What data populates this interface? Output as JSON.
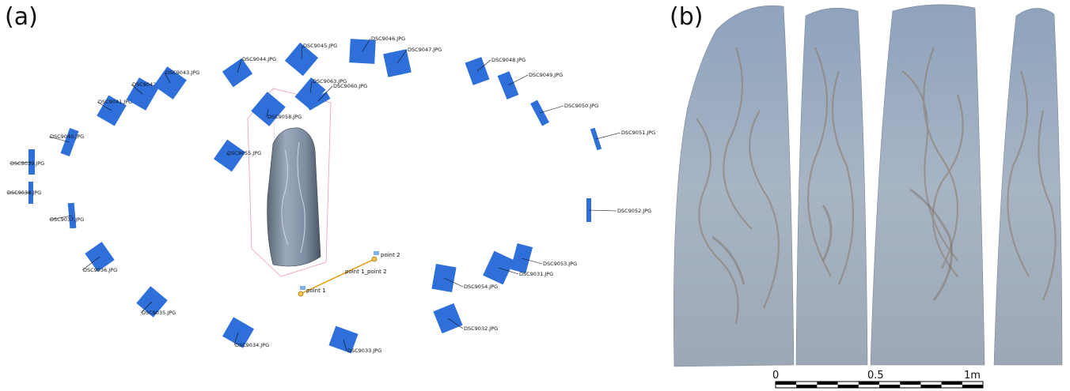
{
  "panel_a": {
    "letter": "(a)",
    "cameras": [
      {
        "label": "DSC9044.JPG"
      },
      {
        "label": "DSC9045.JPG"
      },
      {
        "label": "DSC9046.JPG"
      },
      {
        "label": "DSC9047.JPG"
      },
      {
        "label": "DSC9048.JPG"
      },
      {
        "label": "DSC9049.JPG"
      },
      {
        "label": "DSC9050.JPG"
      },
      {
        "label": "DSC9051.JPG"
      },
      {
        "label": "DSC9052.JPG"
      },
      {
        "label": "DSC9053.JPG"
      },
      {
        "label": "DSC9031.JPG"
      },
      {
        "label": "DSC9054.JPG"
      },
      {
        "label": "DSC9032.JPG"
      },
      {
        "label": "DSC9033.JPG"
      },
      {
        "label": "DSC9034.JPG"
      },
      {
        "label": "DSC9035.JPG"
      },
      {
        "label": "DSC9036.JPG"
      },
      {
        "label": "DSC9037.JPG"
      },
      {
        "label": "DSC9038.JPG"
      },
      {
        "label": "DSC9039.JPG"
      },
      {
        "label": "DSC9040.JPG"
      },
      {
        "label": "DSC9041.JPG"
      },
      {
        "label": "DSC9042.JPG"
      },
      {
        "label": "DSC9043.JPG"
      },
      {
        "label": "DSC9063.JPG"
      },
      {
        "label": "DSC9060.JPG"
      },
      {
        "label": "DSC9058.JPG"
      },
      {
        "label": "DSC9055.JPG"
      }
    ],
    "points": {
      "p1": "point 1",
      "p2": "point 2",
      "line": "point 1_point 2"
    }
  },
  "panel_b": {
    "letter": "(b)",
    "scale": {
      "labels": [
        "0",
        "0.5",
        "1m"
      ]
    }
  },
  "colors": {
    "camera": "#2e6fd9",
    "line": "#e6a21e",
    "bbox": "#e8a0b0"
  }
}
